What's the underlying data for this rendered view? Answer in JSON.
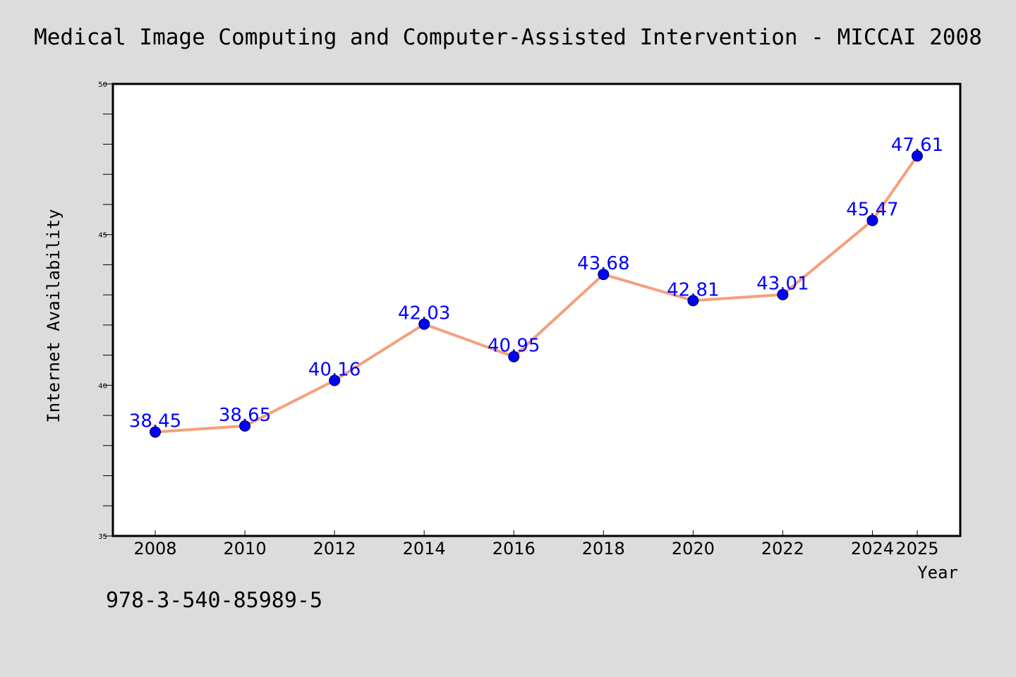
{
  "chart_data": {
    "type": "line",
    "title": "Medical Image Computing and Computer-Assisted Intervention - MICCAI 2008",
    "xlabel": "Year",
    "ylabel": "Internet Availability",
    "categories": [
      "2008",
      "2010",
      "2012",
      "2014",
      "2016",
      "2018",
      "2020",
      "2022",
      "2024",
      "2025"
    ],
    "series": [
      {
        "values": [
          38.45,
          38.65,
          40.16,
          42.03,
          40.95,
          43.68,
          42.81,
          43.01,
          45.47,
          47.61
        ]
      }
    ],
    "ylim": [
      35,
      50
    ],
    "yticks": [
      35,
      40,
      45,
      50
    ],
    "data_labels": [
      "38.45",
      "38.65",
      "40.16",
      "42.03",
      "40.95",
      "43.68",
      "42.81",
      "43.01",
      "45.47",
      "47.61"
    ],
    "grid": false,
    "legend": "none",
    "colors": {
      "line": "#f4a07a",
      "marker": "#0000ff",
      "label": "#0000ff",
      "background": "#dcdcdc",
      "plot_background": "#ffffff"
    }
  },
  "footnote": "978-3-540-85989-5"
}
